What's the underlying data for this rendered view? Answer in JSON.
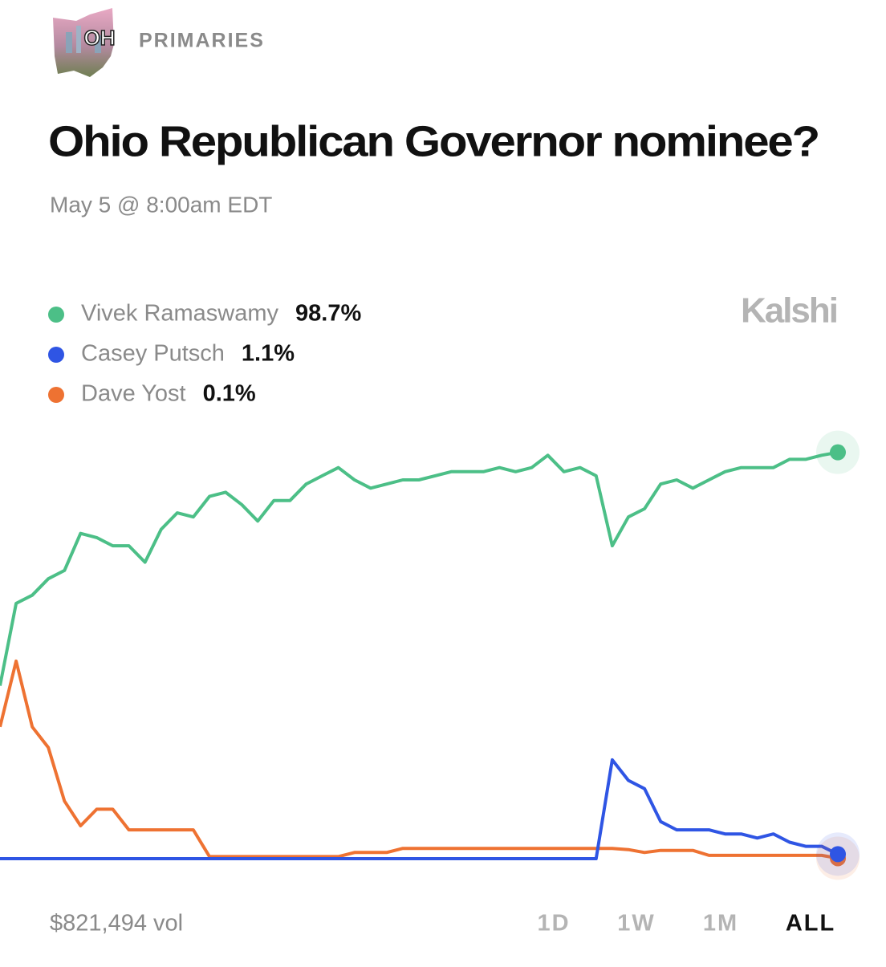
{
  "header": {
    "region": "OH",
    "category": "PRIMARIES"
  },
  "brand": "Kalshi",
  "chart_data": {
    "type": "line",
    "title": "Ohio Republican Governor nominee?",
    "subtitle": "May 5 @ 8:00am EDT",
    "ylim": [
      0,
      100
    ],
    "series": [
      {
        "name": "Vivek Ramaswamy",
        "color": "#4cbf87",
        "values": [
          42,
          62,
          64,
          68,
          70,
          79,
          78,
          76,
          76,
          72,
          80,
          84,
          83,
          88,
          89,
          86,
          82,
          87,
          87,
          91,
          93,
          95,
          92,
          90,
          91,
          92,
          92,
          93,
          94,
          94,
          94,
          95,
          94,
          95,
          98,
          94,
          95,
          93,
          76,
          83,
          85,
          91,
          92,
          90,
          92,
          94,
          95,
          95,
          95,
          97,
          97,
          98,
          98.7
        ],
        "value_labels": [
          null,
          null,
          null,
          null,
          null,
          null,
          null,
          null,
          null,
          null,
          null,
          null,
          null,
          null,
          null,
          null,
          null,
          null,
          null,
          null,
          null,
          null,
          null,
          null,
          null,
          null,
          null,
          null,
          null,
          null,
          null,
          null,
          null,
          null,
          null,
          null,
          null,
          null,
          null,
          null,
          null,
          null,
          null,
          null,
          null,
          null,
          null,
          null,
          null,
          null,
          null,
          null,
          "98.7%"
        ]
      },
      {
        "name": "Casey Putsch",
        "color": "#2f55e4",
        "values": [
          0,
          0,
          0,
          0,
          0,
          0,
          0,
          0,
          0,
          0,
          0,
          0,
          0,
          0,
          0,
          0,
          0,
          0,
          0,
          0,
          0,
          0,
          0,
          0,
          0,
          0,
          0,
          0,
          0,
          0,
          0,
          0,
          0,
          0,
          0,
          0,
          0,
          0,
          24,
          19,
          17,
          9,
          7,
          7,
          7,
          6,
          6,
          5,
          6,
          4,
          3,
          3,
          1.1
        ],
        "value_labels": [
          null,
          null,
          null,
          null,
          null,
          null,
          null,
          null,
          null,
          null,
          null,
          null,
          null,
          null,
          null,
          null,
          null,
          null,
          null,
          null,
          null,
          null,
          null,
          null,
          null,
          null,
          null,
          null,
          null,
          null,
          null,
          null,
          null,
          null,
          null,
          null,
          null,
          null,
          null,
          null,
          null,
          null,
          null,
          null,
          null,
          null,
          null,
          null,
          null,
          null,
          null,
          null,
          "1.1%"
        ]
      },
      {
        "name": "Dave Yost",
        "color": "#ee7232",
        "values": [
          32,
          48,
          32,
          27,
          14,
          8,
          12,
          12,
          7,
          7,
          7,
          7,
          7,
          0.5,
          0.5,
          0.5,
          0.5,
          0.5,
          0.5,
          0.5,
          0.5,
          0.5,
          1.5,
          1.5,
          1.5,
          2.5,
          2.5,
          2.5,
          2.5,
          2.5,
          2.5,
          2.5,
          2.5,
          2.5,
          2.5,
          2.5,
          2.5,
          2.5,
          2.5,
          2.2,
          1.5,
          2,
          2,
          2,
          0.8,
          0.8,
          0.8,
          0.8,
          0.8,
          0.8,
          0.8,
          0.8,
          0.1
        ],
        "value_labels": [
          null,
          null,
          null,
          null,
          null,
          null,
          null,
          null,
          null,
          null,
          null,
          null,
          null,
          null,
          null,
          null,
          null,
          null,
          null,
          null,
          null,
          null,
          null,
          null,
          null,
          null,
          null,
          null,
          null,
          null,
          null,
          null,
          null,
          null,
          null,
          null,
          null,
          null,
          null,
          null,
          null,
          null,
          null,
          null,
          null,
          null,
          null,
          null,
          null,
          null,
          null,
          null,
          "0.1%"
        ]
      }
    ]
  },
  "footer": {
    "volume": "$821,494 vol",
    "ranges": [
      "1D",
      "1W",
      "1M",
      "ALL"
    ],
    "selected_range": "ALL"
  }
}
